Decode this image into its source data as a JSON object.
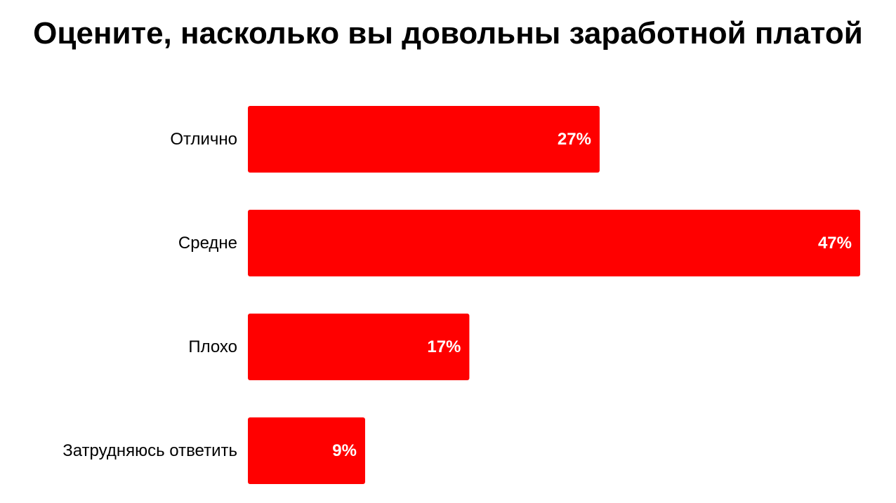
{
  "chart_data": {
    "type": "bar",
    "orientation": "horizontal",
    "title": "Оцените, насколько вы довольны заработной платой",
    "categories": [
      "Отлично",
      "Средне",
      "Плохо",
      "Затрудняюсь ответить"
    ],
    "values": [
      27,
      47,
      17,
      9
    ],
    "value_labels": [
      "27%",
      "47%",
      "17%",
      "9%"
    ],
    "unit": "%",
    "xlim": [
      0,
      47
    ],
    "grid": false,
    "legend": "none",
    "bar_color": "#ff0000",
    "value_label_color": "#ffffff"
  }
}
